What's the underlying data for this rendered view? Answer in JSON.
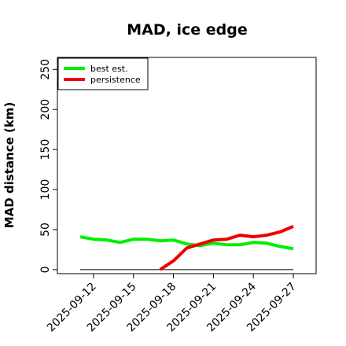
{
  "chart_data": {
    "type": "line",
    "title": "MAD, ice edge",
    "xlabel": "",
    "ylabel": "MAD distance (km)",
    "x": [
      "2025-09-11",
      "2025-09-12",
      "2025-09-13",
      "2025-09-14",
      "2025-09-15",
      "2025-09-16",
      "2025-09-17",
      "2025-09-18",
      "2025-09-19",
      "2025-09-20",
      "2025-09-21",
      "2025-09-22",
      "2025-09-23",
      "2025-09-24",
      "2025-09-25",
      "2025-09-26",
      "2025-09-27"
    ],
    "x_tick_labels": [
      "2025-09-12",
      "2025-09-15",
      "2025-09-18",
      "2025-09-21",
      "2025-09-24",
      "2025-09-27"
    ],
    "ylim": [
      -5,
      265
    ],
    "y_ticks": [
      0,
      50,
      100,
      150,
      200,
      250
    ],
    "legend_position": "top-left",
    "series": [
      {
        "name": "best est.",
        "color": "#00ee00",
        "values": [
          41,
          38,
          37,
          34,
          38,
          38,
          36,
          37,
          32,
          30,
          33,
          31,
          31,
          34,
          33,
          29,
          26
        ]
      },
      {
        "name": "persistence",
        "color": "#ee0000",
        "values": [
          null,
          null,
          null,
          null,
          null,
          null,
          0,
          11,
          27,
          32,
          37,
          38,
          43,
          41,
          43,
          47,
          54
        ]
      }
    ],
    "reference_line": {
      "value": 0,
      "color": "#000000"
    }
  }
}
